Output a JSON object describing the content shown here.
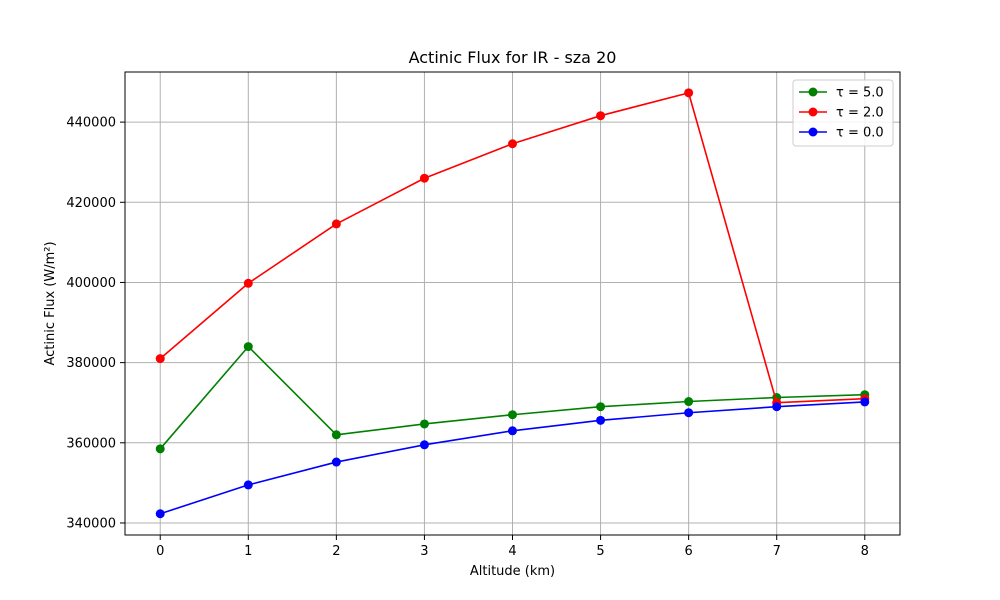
{
  "chart_data": {
    "type": "line",
    "title": "Actinic Flux for IR - sza 20",
    "xlabel": "Altitude (km)",
    "ylabel": "Actinic Flux (W/m²)",
    "x": [
      0,
      1,
      2,
      3,
      4,
      5,
      6,
      7,
      8
    ],
    "xlim": [
      -0.4,
      8.4
    ],
    "ylim": [
      337000,
      452500
    ],
    "xticks": [
      0,
      1,
      2,
      3,
      4,
      5,
      6,
      7,
      8
    ],
    "yticks": [
      340000,
      360000,
      380000,
      400000,
      420000,
      440000
    ],
    "grid": true,
    "legend_position": "top-right",
    "series": [
      {
        "name": "τ = 5.0",
        "color": "#008000",
        "values": [
          358500,
          384000,
          362000,
          364700,
          367000,
          369000,
          370300,
          371300,
          372000
        ]
      },
      {
        "name": "τ = 2.0",
        "color": "#ff0000",
        "values": [
          381000,
          399800,
          414600,
          426000,
          434600,
          441600,
          447300,
          370000,
          371000
        ]
      },
      {
        "name": "τ = 0.0",
        "color": "#0000ff",
        "values": [
          342300,
          349500,
          355200,
          359500,
          363000,
          365600,
          367500,
          369000,
          370200
        ]
      }
    ]
  }
}
